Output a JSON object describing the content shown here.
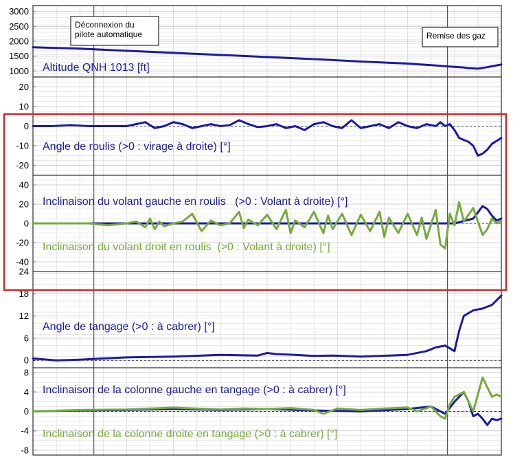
{
  "colors": {
    "blue": "#1a1aa8",
    "green": "#76ab3c",
    "highlight": "#d32626",
    "event_line": "#555555",
    "grid": "#d9d9d9"
  },
  "chart_data": [
    {
      "type": "line",
      "xlim": [
        0,
        100
      ],
      "ylim": [
        800,
        3200
      ],
      "yticks": [
        1000,
        1500,
        2000,
        2500,
        3000
      ],
      "series": [
        {
          "name": "Altitude QNH 1013 [ft]",
          "color": "blue",
          "x": [
            0,
            10,
            20,
            30,
            40,
            50,
            60,
            70,
            80,
            85,
            88,
            90,
            92,
            93,
            95,
            97,
            98,
            99,
            100
          ],
          "values": [
            1800,
            1750,
            1680,
            1610,
            1540,
            1470,
            1400,
            1320,
            1250,
            1200,
            1160,
            1140,
            1120,
            1100,
            1080,
            1130,
            1160,
            1190,
            1220
          ]
        }
      ]
    },
    {
      "type": "line",
      "xlim": [
        0,
        100
      ],
      "ylim": [
        -25,
        25
      ],
      "yticks": [
        -20,
        -10,
        0,
        10,
        20
      ],
      "series": [
        {
          "name": "Angle de roulis (>0 : virage à droite) [°]",
          "color": "blue",
          "x": [
            0,
            4,
            8,
            12,
            16,
            20,
            22,
            24,
            26,
            28,
            30,
            32,
            34,
            36,
            38,
            40,
            42,
            44,
            46,
            48,
            50,
            52,
            54,
            56,
            58,
            60,
            62,
            64,
            66,
            68,
            70,
            72,
            74,
            76,
            78,
            80,
            82,
            84,
            86,
            87,
            88,
            89,
            90,
            91,
            92,
            93,
            94,
            95,
            96,
            97,
            98,
            100
          ],
          "values": [
            0,
            0,
            0.5,
            0,
            0,
            0,
            1,
            2,
            -1,
            0,
            2,
            1,
            -1,
            0,
            1,
            0,
            0.5,
            3,
            1,
            -0.5,
            0,
            1,
            -1,
            0,
            -2,
            1,
            2,
            0,
            -1,
            3,
            -1,
            0,
            1,
            -1,
            2,
            0,
            -1,
            1,
            0,
            2,
            0,
            1,
            -2,
            -6,
            -7,
            -8,
            -10,
            -15,
            -14,
            -12,
            -9,
            -6
          ]
        }
      ]
    },
    {
      "type": "line",
      "xlim": [
        0,
        100
      ],
      "ylim": [
        -50,
        50
      ],
      "yticks": [
        -40,
        -20,
        0,
        20,
        40
      ],
      "series": [
        {
          "name": "Inclinaison du volant gauche en roulis   (>0 : Volant à droite) [°]",
          "color": "blue",
          "x": [
            0,
            10,
            20,
            30,
            40,
            50,
            60,
            70,
            80,
            90,
            94,
            96,
            97,
            98,
            99,
            100
          ],
          "values": [
            0,
            0,
            0,
            0,
            0,
            0,
            0,
            0,
            0,
            0,
            5,
            18,
            15,
            8,
            3,
            5
          ]
        },
        {
          "name": "Inclinaison du volant droit en roulis  (>0 : Volant à droite) [°]",
          "color": "green",
          "x": [
            0,
            8,
            12,
            16,
            20,
            22,
            24,
            25,
            26,
            27,
            28,
            30,
            32,
            34,
            36,
            38,
            40,
            42,
            44,
            45,
            46,
            48,
            50,
            52,
            54,
            55,
            56,
            58,
            60,
            62,
            63,
            64,
            66,
            68,
            70,
            72,
            74,
            75,
            76,
            78,
            80,
            82,
            83,
            84,
            86,
            87,
            88,
            89,
            90,
            91,
            92,
            94,
            96,
            97,
            98,
            99,
            100
          ],
          "values": [
            0,
            0,
            0,
            -2,
            0,
            2,
            -4,
            5,
            -6,
            2,
            -3,
            0,
            2,
            10,
            -8,
            3,
            -2,
            0,
            12,
            -5,
            4,
            -2,
            9,
            -6,
            14,
            -10,
            3,
            -4,
            12,
            -10,
            8,
            -6,
            10,
            -12,
            9,
            -8,
            12,
            -14,
            6,
            -10,
            10,
            -12,
            6,
            -16,
            14,
            -22,
            -26,
            10,
            -2,
            22,
            2,
            16,
            -12,
            -6,
            5,
            0,
            3
          ]
        }
      ]
    },
    {
      "type": "line",
      "xlim": [
        0,
        100
      ],
      "ylim": [
        -2,
        24
      ],
      "yticks": [
        0,
        6,
        12,
        18,
        24
      ],
      "series": [
        {
          "name": "Angle de tangage (>0 : à cabrer) [°]",
          "color": "blue",
          "x": [
            0,
            5,
            10,
            20,
            30,
            40,
            48,
            50,
            52,
            56,
            60,
            64,
            70,
            80,
            84,
            86,
            88,
            90,
            91,
            92,
            94,
            96,
            98,
            100
          ],
          "values": [
            0.5,
            0,
            0.2,
            0.8,
            1.0,
            1.5,
            1.3,
            2.0,
            1.7,
            1.5,
            1.2,
            1.3,
            1.0,
            1.5,
            2.5,
            3.5,
            4.0,
            2.5,
            8.0,
            12.0,
            13.5,
            14.0,
            15.0,
            17.5
          ]
        }
      ]
    },
    {
      "type": "line",
      "xlim": [
        0,
        100
      ],
      "ylim": [
        -9,
        9
      ],
      "yticks": [
        -8,
        -4,
        0,
        4,
        8
      ],
      "series": [
        {
          "name": "Inclinaison de la colonne gauche en tangage (>0 : à cabrer) [°]",
          "color": "blue",
          "x": [
            0,
            10,
            20,
            30,
            40,
            50,
            60,
            70,
            80,
            85,
            88,
            90,
            92,
            93,
            94,
            95,
            96,
            97,
            98,
            99,
            100
          ],
          "values": [
            0,
            0.2,
            0.3,
            0.5,
            0.3,
            0.5,
            0.2,
            0,
            0.5,
            1.0,
            -0.5,
            2.0,
            4.0,
            2.0,
            -1.0,
            -0.5,
            -1.5,
            -2.8,
            -1.5,
            -1.8,
            -1.5
          ]
        },
        {
          "name": "Inclinaison de la colonne droite en tangage (>0 : à cabrer) [°]",
          "color": "green",
          "x": [
            0,
            10,
            20,
            30,
            40,
            45,
            50,
            55,
            60,
            62,
            65,
            70,
            75,
            80,
            82,
            85,
            87,
            88,
            89,
            90,
            92,
            93,
            94,
            96,
            97,
            98,
            99,
            100
          ],
          "values": [
            0,
            0.3,
            0.4,
            0.8,
            0.4,
            0.6,
            0.5,
            0.7,
            0.3,
            -0.5,
            0.6,
            0.3,
            0.6,
            0.8,
            0,
            1.0,
            -1.0,
            -1.5,
            1.5,
            3.0,
            4.0,
            2.0,
            0,
            7.0,
            5.0,
            3.0,
            3.5,
            3.0
          ]
        }
      ]
    }
  ],
  "annotations": {
    "autopilot_disconnect": {
      "text": "Déconnexion du\npilote automatique",
      "x": 13
    },
    "go_around": {
      "text": "Remise des gaz",
      "x": 88.5
    }
  }
}
